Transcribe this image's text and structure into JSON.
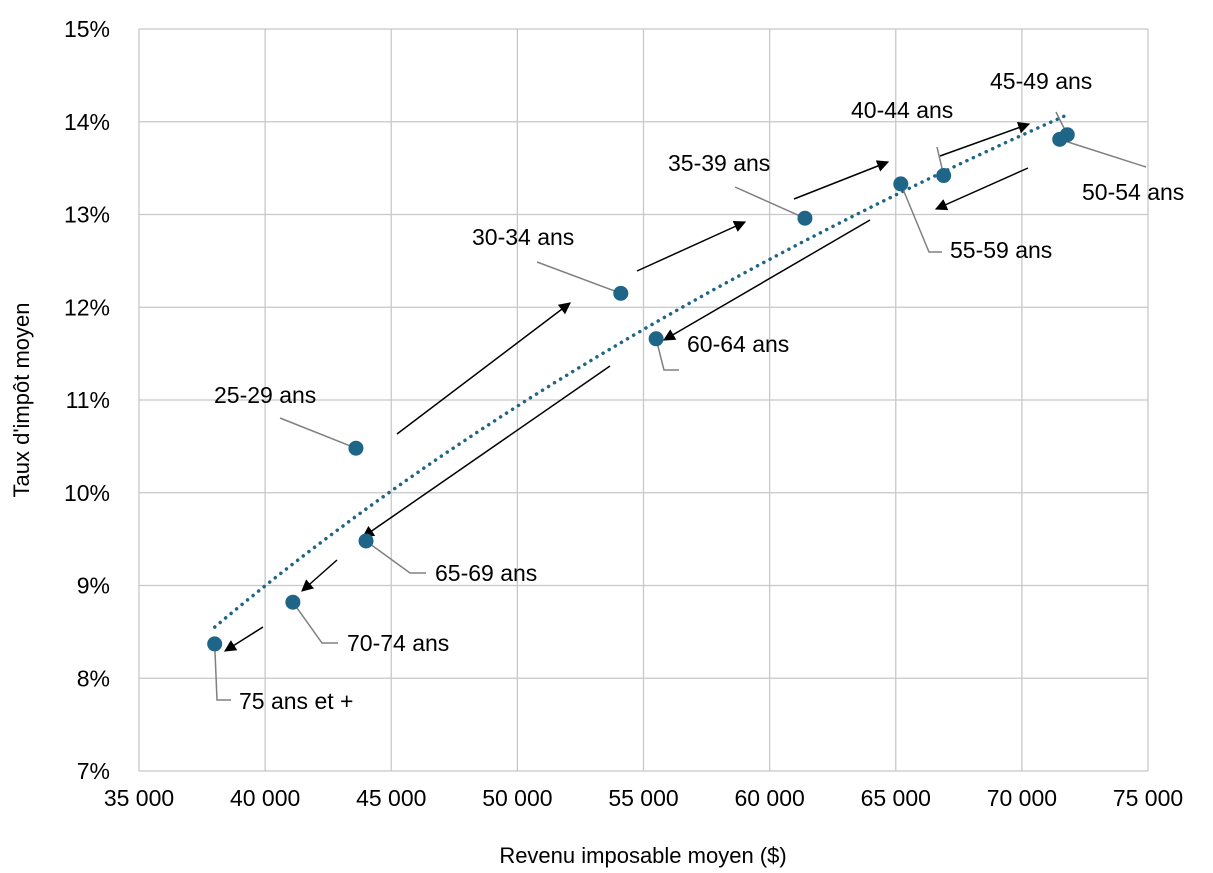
{
  "chart_data": {
    "type": "scatter",
    "title": "",
    "xlabel": "Revenu imposable moyen ($)",
    "ylabel": "Taux d'impôt moyen",
    "xlim": [
      35000,
      75000
    ],
    "ylim": [
      7,
      15
    ],
    "x_ticks": [
      {
        "value": 35000,
        "label": "35 000"
      },
      {
        "value": 40000,
        "label": "40 000"
      },
      {
        "value": 45000,
        "label": "45 000"
      },
      {
        "value": 50000,
        "label": "50 000"
      },
      {
        "value": 55000,
        "label": "55 000"
      },
      {
        "value": 60000,
        "label": "60 000"
      },
      {
        "value": 65000,
        "label": "65 000"
      },
      {
        "value": 70000,
        "label": "70 000"
      },
      {
        "value": 75000,
        "label": "75 000"
      }
    ],
    "y_ticks": [
      {
        "value": 7,
        "label": "7%"
      },
      {
        "value": 8,
        "label": "8%"
      },
      {
        "value": 9,
        "label": "9%"
      },
      {
        "value": 10,
        "label": "10%"
      },
      {
        "value": 11,
        "label": "11%"
      },
      {
        "value": 12,
        "label": "12%"
      },
      {
        "value": 13,
        "label": "13%"
      },
      {
        "value": 14,
        "label": "14%"
      },
      {
        "value": 15,
        "label": "15%"
      }
    ],
    "grid": true,
    "marker_color": "#1f6587",
    "trendline": {
      "style": "dotted",
      "color": "#1f6587",
      "kind": "logarithmic"
    },
    "points": [
      {
        "label": "25-29 ans",
        "x": 43600,
        "y": 10.48
      },
      {
        "label": "30-34 ans",
        "x": 54100,
        "y": 12.15
      },
      {
        "label": "35-39 ans",
        "x": 61400,
        "y": 12.96
      },
      {
        "label": "40-44 ans",
        "x": 66900,
        "y": 13.42
      },
      {
        "label": "45-49 ans",
        "x": 71800,
        "y": 13.86
      },
      {
        "label": "50-54 ans",
        "x": 71500,
        "y": 13.81
      },
      {
        "label": "55-59 ans",
        "x": 65200,
        "y": 13.33
      },
      {
        "label": "60-64 ans",
        "x": 55500,
        "y": 11.66
      },
      {
        "label": "65-69 ans",
        "x": 44000,
        "y": 9.48
      },
      {
        "label": "70-74 ans",
        "x": 41100,
        "y": 8.82
      },
      {
        "label": "75 ans et +",
        "x": 38000,
        "y": 8.37
      }
    ]
  }
}
